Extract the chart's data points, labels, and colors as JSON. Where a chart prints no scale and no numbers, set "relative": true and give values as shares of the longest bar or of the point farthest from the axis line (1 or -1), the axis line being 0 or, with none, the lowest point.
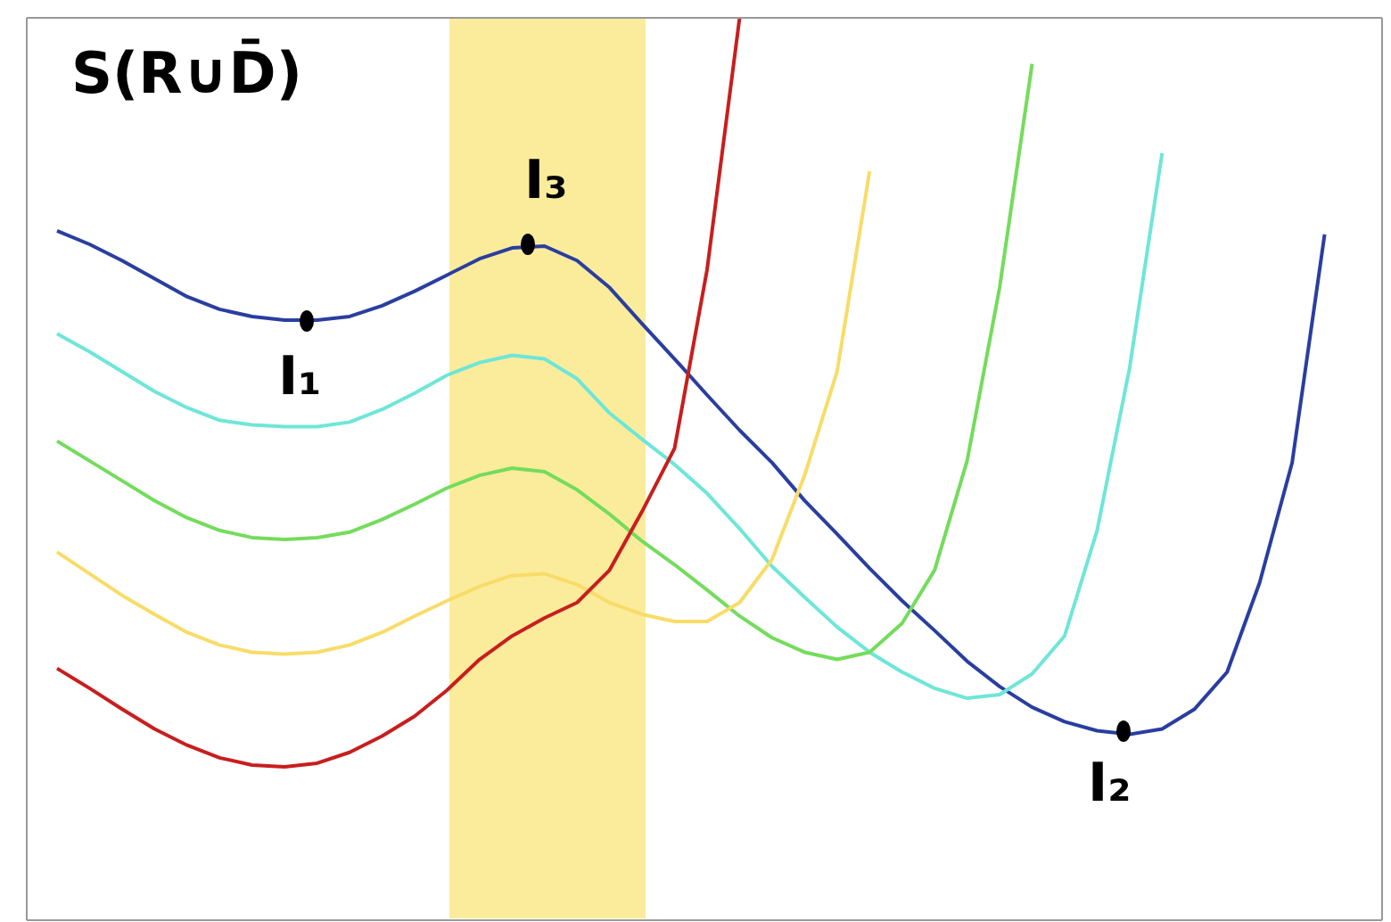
{
  "chart_data": {
    "type": "line",
    "relative": true,
    "ylabel": "S(R∪D̄)",
    "categories": [
      null,
      null,
      null,
      null,
      null,
      null,
      null,
      null,
      null,
      null,
      null,
      null,
      null,
      null,
      null,
      null,
      null,
      null,
      null,
      null,
      null,
      null,
      null,
      null,
      null,
      null,
      null,
      null,
      null,
      null,
      null,
      null,
      null,
      null,
      null,
      null,
      null,
      null,
      null,
      null,
      null
    ],
    "tick_labels": false,
    "marker": "none",
    "line_style": "solid",
    "annotations": [
      "I₁",
      "I₃",
      "I₂"
    ],
    "series": [
      {
        "color": "#2a3ea0",
        "values": [
          0.764,
          0.749,
          0.731,
          0.711,
          0.691,
          0.677,
          0.669,
          0.665,
          0.665,
          0.669,
          0.681,
          0.697,
          0.715,
          0.733,
          0.745,
          0.747,
          0.731,
          0.701,
          0.661,
          0.622,
          0.582,
          0.543,
          0.507,
          0.465,
          0.428,
          0.39,
          0.354,
          0.321,
          0.287,
          0.259,
          0.236,
          0.22,
          0.21,
          0.206,
          0.212,
          0.234,
          0.275,
          0.374,
          0.507,
          0.76,
          null
        ]
      },
      {
        "color": "#6ee6d8",
        "values": [
          0.65,
          0.63,
          0.608,
          0.586,
          0.568,
          0.554,
          0.549,
          0.547,
          0.547,
          0.552,
          0.566,
          0.584,
          0.604,
          0.618,
          0.626,
          0.622,
          0.6,
          0.562,
          0.533,
          0.505,
          0.473,
          0.434,
          0.392,
          0.358,
          0.325,
          0.297,
          0.275,
          0.257,
          0.246,
          0.25,
          0.273,
          0.315,
          0.432,
          0.612,
          0.85,
          null,
          null,
          null,
          null,
          null,
          null
        ]
      },
      {
        "color": "#74dc5c",
        "values": [
          0.531,
          0.509,
          0.487,
          0.465,
          0.446,
          0.432,
          0.424,
          0.422,
          0.424,
          0.43,
          0.444,
          0.461,
          0.479,
          0.493,
          0.501,
          0.497,
          0.477,
          0.45,
          0.42,
          0.394,
          0.366,
          0.337,
          0.313,
          0.297,
          0.289,
          0.297,
          0.329,
          0.388,
          0.509,
          0.701,
          0.949,
          null,
          null,
          null,
          null,
          null,
          null,
          null,
          null,
          null,
          null
        ]
      },
      {
        "color": "#f8dc68",
        "values": [
          0.408,
          0.384,
          0.36,
          0.339,
          0.319,
          0.305,
          0.297,
          0.295,
          0.297,
          0.305,
          0.319,
          0.337,
          0.354,
          0.37,
          0.382,
          0.384,
          0.372,
          0.352,
          0.339,
          0.331,
          0.331,
          0.352,
          0.4,
          0.493,
          0.608,
          0.83,
          null,
          null,
          null,
          null,
          null,
          null,
          null,
          null,
          null,
          null,
          null,
          null,
          null,
          null,
          null
        ]
      },
      {
        "color": "#c81e1e",
        "values": [
          0.279,
          0.257,
          0.234,
          0.212,
          0.194,
          0.18,
          0.172,
          0.17,
          0.174,
          0.186,
          0.204,
          0.226,
          0.255,
          0.289,
          0.315,
          0.335,
          0.352,
          0.388,
          0.453,
          0.523,
          0.721,
          1.0,
          null,
          null,
          null,
          null,
          null,
          null,
          null,
          null,
          null,
          null,
          null,
          null,
          null,
          null,
          null,
          null,
          null,
          null,
          null
        ]
      }
    ]
  }
}
